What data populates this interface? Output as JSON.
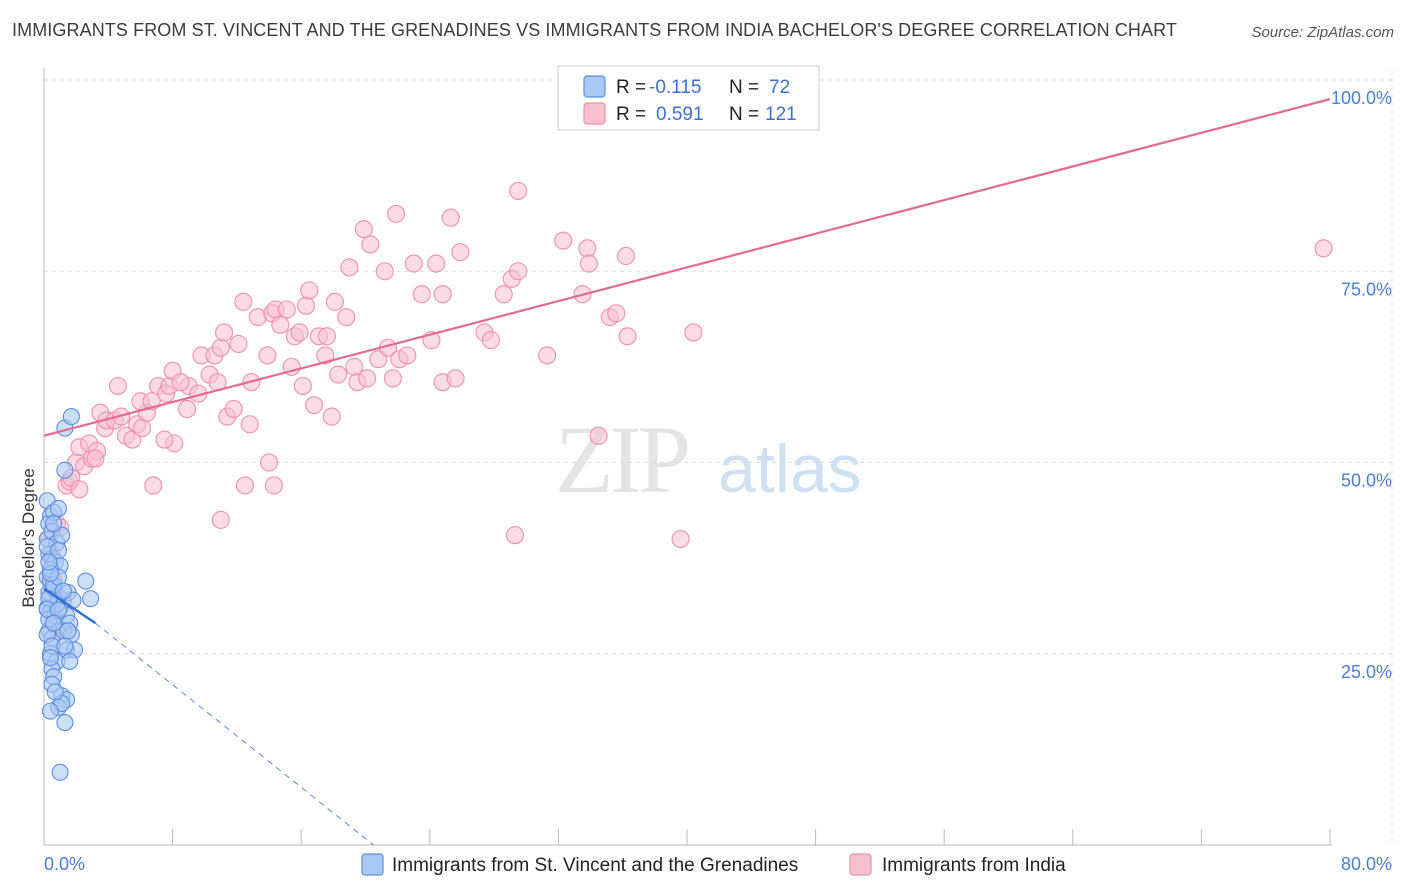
{
  "title": "IMMIGRANTS FROM ST. VINCENT AND THE GRENADINES VS IMMIGRANTS FROM INDIA BACHELOR'S DEGREE CORRELATION CHART",
  "source": "Source: ZipAtlas.com",
  "watermark": {
    "zip": "ZIP",
    "atlas": "atlas"
  },
  "colors": {
    "blue_fill": "#a9c8f3",
    "blue_stroke": "#5b8fe0",
    "blue_line": "#2f6fd6",
    "pink_fill": "#f7c0d1",
    "pink_stroke": "#ef8fae",
    "pink_line": "#e46a94",
    "tick_text": "#4a7fd0",
    "grid": "#dcdcdc"
  },
  "legend": {
    "rows": [
      {
        "r_label": "R = ",
        "r_value": "-0.115",
        "n_label": "N = ",
        "n_value": "72"
      },
      {
        "r_label": "R = ",
        "r_value": "0.591",
        "n_label": "N = ",
        "n_value": "121"
      }
    ]
  },
  "chart_data": {
    "type": "scatter",
    "xlabel": "",
    "ylabel": "Bachelor's Degree",
    "xlim": [
      0,
      80
    ],
    "ylim": [
      0,
      100
    ],
    "x_tick_labels": [
      "0.0%",
      "80.0%"
    ],
    "y_ticks": [
      {
        "value": 25,
        "label": "25.0%"
      },
      {
        "value": 50,
        "label": "50.0%"
      },
      {
        "value": 75,
        "label": "75.0%"
      },
      {
        "value": 100,
        "label": "100.0%"
      }
    ],
    "grid": true,
    "series": [
      {
        "name": "Immigrants from St. Vincent and the Grenadines",
        "color": "blue",
        "R": -0.115,
        "N": 72,
        "trend": {
          "x0": 0,
          "y0": 33.5,
          "x1": 3.2,
          "y1": 29.0,
          "dash_x1": 20.5,
          "dash_y1": 0
        },
        "points": [
          [
            0.2,
            45
          ],
          [
            0.4,
            43
          ],
          [
            0.3,
            42
          ],
          [
            0.6,
            43.5
          ],
          [
            0.9,
            44
          ],
          [
            0.2,
            40
          ],
          [
            0.5,
            41
          ],
          [
            0.8,
            39.5
          ],
          [
            0.3,
            38
          ],
          [
            0.5,
            37.5
          ],
          [
            0.7,
            37
          ],
          [
            1.0,
            36.5
          ],
          [
            0.2,
            35
          ],
          [
            0.4,
            34.5
          ],
          [
            0.3,
            33
          ],
          [
            0.6,
            33.5
          ],
          [
            0.9,
            32.5
          ],
          [
            1.2,
            32
          ],
          [
            1.5,
            33
          ],
          [
            1.8,
            32
          ],
          [
            2.6,
            34.5
          ],
          [
            2.9,
            32.2
          ],
          [
            0.2,
            31
          ],
          [
            0.4,
            30.5
          ],
          [
            0.7,
            30
          ],
          [
            1.0,
            31
          ],
          [
            1.4,
            30
          ],
          [
            1.6,
            29
          ],
          [
            0.3,
            28
          ],
          [
            0.5,
            27
          ],
          [
            1.2,
            28
          ],
          [
            1.7,
            27.5
          ],
          [
            0.4,
            25
          ],
          [
            0.8,
            24
          ],
          [
            1.4,
            25.5
          ],
          [
            1.9,
            25.5
          ],
          [
            0.5,
            23
          ],
          [
            1.6,
            24
          ],
          [
            0.6,
            22
          ],
          [
            0.5,
            21
          ],
          [
            1.1,
            19.5
          ],
          [
            1.4,
            19
          ],
          [
            0.9,
            18
          ],
          [
            1.1,
            18.5
          ],
          [
            0.4,
            17.5
          ],
          [
            1.3,
            16
          ],
          [
            1.0,
            9.5
          ],
          [
            1.3,
            54.5
          ],
          [
            1.7,
            56
          ],
          [
            1.3,
            49
          ],
          [
            0.2,
            39
          ],
          [
            0.4,
            36
          ],
          [
            0.6,
            34
          ],
          [
            0.8,
            31.5
          ],
          [
            0.3,
            29.5
          ],
          [
            0.2,
            27.5
          ],
          [
            0.5,
            26
          ],
          [
            0.9,
            38.5
          ],
          [
            1.1,
            40.5
          ],
          [
            0.6,
            42
          ],
          [
            0.3,
            32.2
          ],
          [
            0.9,
            35
          ],
          [
            1.3,
            26
          ],
          [
            0.7,
            20
          ],
          [
            0.4,
            35.5
          ],
          [
            1.5,
            28
          ],
          [
            0.2,
            30.8
          ],
          [
            0.3,
            37
          ],
          [
            0.9,
            30.7
          ],
          [
            1.2,
            33.2
          ],
          [
            0.6,
            29
          ],
          [
            0.4,
            24.5
          ]
        ]
      },
      {
        "name": "Immigrants from India",
        "color": "pink",
        "R": 0.591,
        "N": 121,
        "trend": {
          "x0": 0,
          "y0": 53.5,
          "x1": 80,
          "y1": 97.5
        },
        "points": [
          [
            0.3,
            40
          ],
          [
            0.5,
            38
          ],
          [
            0.8,
            42
          ],
          [
            1.0,
            41.5
          ],
          [
            0.6,
            34.5
          ],
          [
            0.4,
            32.5
          ],
          [
            0.7,
            30.5
          ],
          [
            0.9,
            28
          ],
          [
            1.4,
            47
          ],
          [
            1.6,
            47.5
          ],
          [
            2.0,
            50
          ],
          [
            2.5,
            49.5
          ],
          [
            1.7,
            48
          ],
          [
            2.2,
            52
          ],
          [
            2.8,
            52.5
          ],
          [
            3.0,
            50.5
          ],
          [
            3.3,
            51.5
          ],
          [
            3.5,
            56.5
          ],
          [
            3.8,
            54.5
          ],
          [
            3.9,
            55.5
          ],
          [
            4.4,
            55.5
          ],
          [
            4.8,
            56
          ],
          [
            5.1,
            53.5
          ],
          [
            5.5,
            53
          ],
          [
            5.8,
            55
          ],
          [
            6.1,
            54.5
          ],
          [
            6.4,
            56.5
          ],
          [
            6.0,
            58
          ],
          [
            6.7,
            58
          ],
          [
            7.1,
            60
          ],
          [
            7.6,
            59
          ],
          [
            7.8,
            60
          ],
          [
            8.0,
            62
          ],
          [
            8.1,
            52.5
          ],
          [
            8.9,
            57
          ],
          [
            9.0,
            60
          ],
          [
            9.6,
            59
          ],
          [
            9.8,
            64
          ],
          [
            10.3,
            61.5
          ],
          [
            10.6,
            64
          ],
          [
            11.0,
            65
          ],
          [
            11.2,
            67
          ],
          [
            11.4,
            56
          ],
          [
            11.8,
            57
          ],
          [
            12.1,
            65.5
          ],
          [
            12.4,
            71
          ],
          [
            12.9,
            60.5
          ],
          [
            13.3,
            69
          ],
          [
            13.9,
            64
          ],
          [
            14.2,
            69.5
          ],
          [
            14.4,
            70
          ],
          [
            14.7,
            68
          ],
          [
            15.1,
            70
          ],
          [
            15.4,
            62.5
          ],
          [
            15.6,
            66.5
          ],
          [
            15.9,
            67
          ],
          [
            16.1,
            60
          ],
          [
            16.3,
            70.5
          ],
          [
            16.5,
            72.5
          ],
          [
            16.8,
            57.5
          ],
          [
            17.1,
            66.5
          ],
          [
            17.5,
            64
          ],
          [
            17.6,
            66.5
          ],
          [
            17.9,
            56
          ],
          [
            18.1,
            71
          ],
          [
            18.3,
            61.5
          ],
          [
            18.8,
            69
          ],
          [
            19.0,
            75.5
          ],
          [
            19.3,
            62.5
          ],
          [
            19.5,
            60.5
          ],
          [
            19.9,
            80.5
          ],
          [
            20.1,
            61
          ],
          [
            20.3,
            78.5
          ],
          [
            20.8,
            63.5
          ],
          [
            21.2,
            75
          ],
          [
            21.4,
            65
          ],
          [
            21.7,
            61
          ],
          [
            21.9,
            82.5
          ],
          [
            22.1,
            63.5
          ],
          [
            22.6,
            64
          ],
          [
            23.0,
            76
          ],
          [
            23.5,
            72
          ],
          [
            24.1,
            66
          ],
          [
            24.4,
            76
          ],
          [
            24.8,
            60.5
          ],
          [
            24.8,
            72
          ],
          [
            25.3,
            82
          ],
          [
            25.6,
            61
          ],
          [
            25.9,
            77.5
          ],
          [
            27.4,
            67
          ],
          [
            27.8,
            66
          ],
          [
            28.6,
            72
          ],
          [
            29.1,
            74
          ],
          [
            29.5,
            75
          ],
          [
            29.3,
            40.5
          ],
          [
            29.5,
            85.5
          ],
          [
            31.3,
            64
          ],
          [
            32.3,
            79
          ],
          [
            33.5,
            72
          ],
          [
            33.8,
            78
          ],
          [
            33.9,
            76
          ],
          [
            34.5,
            53.5
          ],
          [
            35.2,
            69
          ],
          [
            35.6,
            69.5
          ],
          [
            36.2,
            77
          ],
          [
            36.3,
            66.5
          ],
          [
            39.6,
            40
          ],
          [
            40.4,
            67
          ],
          [
            79.6,
            78
          ],
          [
            12.5,
            47
          ],
          [
            11.0,
            42.5
          ],
          [
            14.0,
            50
          ],
          [
            14.3,
            47
          ],
          [
            6.8,
            47
          ],
          [
            3.2,
            50.5
          ],
          [
            7.5,
            53
          ],
          [
            10.8,
            60.5
          ],
          [
            8.5,
            60.5
          ],
          [
            4.6,
            60
          ],
          [
            2.2,
            46.5
          ],
          [
            12.8,
            55
          ]
        ]
      }
    ]
  }
}
